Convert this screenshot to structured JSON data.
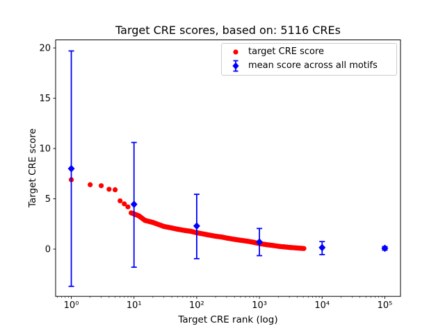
{
  "chart_data": {
    "type": "scatter",
    "title": "Target CRE scores, based on: 5116 CREs",
    "xlabel": "Target CRE rank (log)",
    "ylabel": "Target CRE score",
    "x_scale": "log",
    "xlim_log10": [
      -0.25,
      5.25
    ],
    "ylim": [
      -4.7,
      20.8
    ],
    "yticks": [
      "0",
      "5",
      "10",
      "15",
      "20"
    ],
    "ytick_values": [
      0,
      5,
      10,
      15,
      20
    ],
    "xtick_values": [
      1,
      10,
      100,
      1000,
      10000,
      100000
    ],
    "xtick_labels": [
      "10⁰",
      "10¹",
      "10²",
      "10³",
      "10⁴",
      "10⁵"
    ],
    "grid": false,
    "legend": {
      "position": "upper right",
      "entries": [
        "target CRE score",
        "mean score across all motifs"
      ]
    },
    "series": [
      {
        "name": "target CRE score",
        "type": "scatter",
        "marker": "circle",
        "color": "#ff0000",
        "note": "~5116 points forming a dense decreasing band; sampled anchors [rank, score]",
        "dense_from_rank": 9,
        "points": [
          [
            1,
            6.9
          ],
          [
            2,
            6.4
          ],
          [
            3,
            6.3
          ],
          [
            4,
            5.95
          ],
          [
            5,
            5.9
          ],
          [
            6,
            4.8
          ],
          [
            7,
            4.5
          ],
          [
            8,
            4.2
          ],
          [
            9,
            3.6
          ],
          [
            10,
            3.5
          ],
          [
            12,
            3.3
          ],
          [
            15,
            2.85
          ],
          [
            20,
            2.65
          ],
          [
            30,
            2.25
          ],
          [
            40,
            2.1
          ],
          [
            50,
            1.97
          ],
          [
            65,
            1.85
          ],
          [
            80,
            1.77
          ],
          [
            100,
            1.63
          ],
          [
            150,
            1.42
          ],
          [
            200,
            1.28
          ],
          [
            250,
            1.2
          ],
          [
            300,
            1.1
          ],
          [
            400,
            0.97
          ],
          [
            500,
            0.88
          ],
          [
            650,
            0.78
          ],
          [
            800,
            0.68
          ],
          [
            1000,
            0.55
          ],
          [
            1300,
            0.44
          ],
          [
            1600,
            0.37
          ],
          [
            2000,
            0.28
          ],
          [
            2500,
            0.22
          ],
          [
            3000,
            0.17
          ],
          [
            4000,
            0.11
          ],
          [
            5116,
            0.06
          ]
        ]
      },
      {
        "name": "mean score across all motifs",
        "type": "errorbar",
        "marker": "diamond",
        "color": "#0000ff",
        "points": [
          {
            "x": 1,
            "y": 8.0,
            "lo": -3.7,
            "hi": 19.7
          },
          {
            "x": 10,
            "y": 4.45,
            "lo": -1.8,
            "hi": 10.6
          },
          {
            "x": 100,
            "y": 2.3,
            "lo": -0.95,
            "hi": 5.45
          },
          {
            "x": 1000,
            "y": 0.7,
            "lo": -0.65,
            "hi": 2.05
          },
          {
            "x": 10000,
            "y": 0.15,
            "lo": -0.55,
            "hi": 0.75
          },
          {
            "x": 100000,
            "y": 0.08,
            "lo": -0.1,
            "hi": 0.25
          }
        ]
      }
    ]
  },
  "colors": {
    "red_series": "#ff0000",
    "blue_series": "#0000ff",
    "axes": "#000000",
    "legend_border": "#cccccc",
    "background": "#ffffff"
  }
}
